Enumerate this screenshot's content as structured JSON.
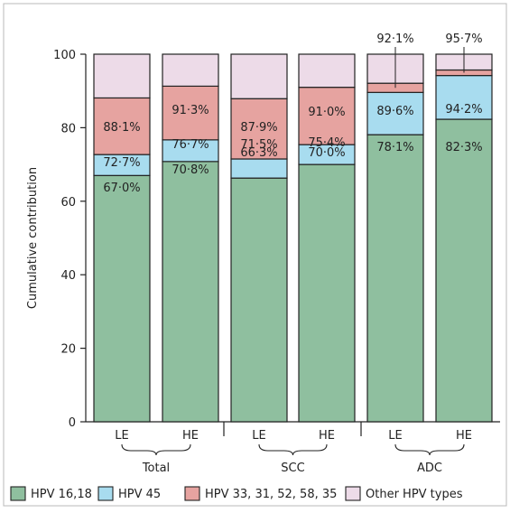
{
  "chart_data": {
    "type": "bar",
    "stacked": true,
    "ylabel": "Cumulative contribution",
    "ylim": [
      0,
      100
    ],
    "yticks": [
      0,
      20,
      40,
      60,
      80,
      100
    ],
    "categories": [
      "LE",
      "HE",
      "LE",
      "HE",
      "LE",
      "HE"
    ],
    "groups": [
      {
        "label": "Total",
        "categories": [
          0,
          1
        ]
      },
      {
        "label": "SCC",
        "categories": [
          2,
          3
        ]
      },
      {
        "label": "ADC",
        "categories": [
          4,
          5
        ]
      }
    ],
    "series": [
      {
        "name": "HPV 16,18",
        "color": "#8fbf9f",
        "cumulative": [
          67.0,
          70.8,
          66.3,
          70.0,
          78.1,
          82.3
        ],
        "labels": [
          "67·0%",
          "70·8%",
          "66·3%",
          "70·0%",
          "78·1%",
          "82·3%"
        ]
      },
      {
        "name": "HPV 45",
        "color": "#a8dcef",
        "cumulative": [
          72.7,
          76.7,
          71.5,
          75.4,
          89.6,
          94.2
        ],
        "labels": [
          "72·7%",
          "76·7%",
          "71·5%",
          "75·4%",
          "89·6%",
          "94·2%"
        ]
      },
      {
        "name": "HPV 33, 31, 52, 58, 35",
        "color": "#e6a3a0",
        "cumulative": [
          88.1,
          91.3,
          87.9,
          91.0,
          92.1,
          95.7
        ],
        "labels": [
          "88·1%",
          "91·3%",
          "87·9%",
          "91·0%",
          "92·1%",
          "95·7%"
        ]
      },
      {
        "name": "Other HPV types",
        "color": "#eddbe8",
        "cumulative": [
          100,
          100,
          100,
          100,
          100,
          100
        ],
        "labels": [
          "",
          "",
          "",
          "",
          "",
          ""
        ]
      }
    ]
  }
}
